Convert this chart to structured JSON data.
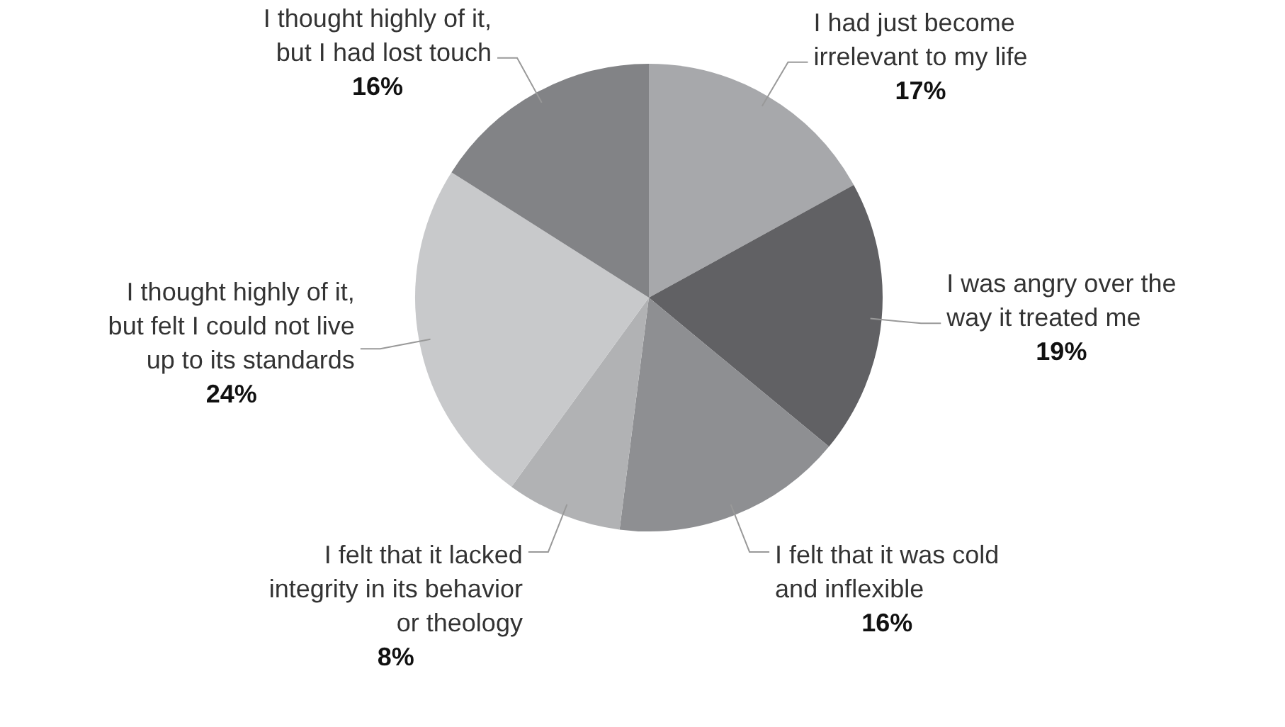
{
  "chart_data": {
    "type": "pie",
    "categories": [
      "I had just become irrelevant to my life",
      "I was angry over the way it treated me",
      "I felt that it was cold and inflexible",
      "I felt that it lacked integrity in its behavior or theology",
      "I thought highly of it, but felt I could not live up to its standards",
      "I thought highly of it, but I had lost touch"
    ],
    "values": [
      17,
      19,
      16,
      8,
      24,
      16
    ],
    "value_labels": [
      "17%",
      "19%",
      "16%",
      "8%",
      "24%",
      "16%"
    ],
    "colors": [
      "#a7a8ab",
      "#616164",
      "#8e8f92",
      "#b1b2b4",
      "#c8c9cb",
      "#828386"
    ],
    "legend": false
  }
}
